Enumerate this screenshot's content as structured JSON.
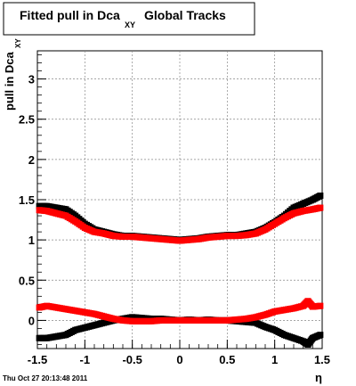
{
  "colors": {
    "series_black": "#000000",
    "series_red": "#ff0000",
    "grid": "#888888"
  },
  "chart_data": {
    "type": "scatter",
    "title_main": "Fitted pull in Dca",
    "title_sub": "XY",
    "title_tail": "Global Tracks",
    "xlabel": "η",
    "ylabel_main": "pull in Dca",
    "ylabel_sub": "XY",
    "xlim": [
      -1.5,
      1.5
    ],
    "ylim": [
      -0.35,
      3.35
    ],
    "grid": true,
    "x_ticks": [
      -1.5,
      -1,
      -0.5,
      0,
      0.5,
      1,
      1.5
    ],
    "x_tick_labels": [
      "-1.5",
      "-1",
      "-0.5",
      "0",
      "0.5",
      "1",
      "1.5"
    ],
    "y_ticks": [
      0,
      0.5,
      1,
      1.5,
      2,
      2.5,
      3
    ],
    "y_tick_labels": [
      "0",
      "0.5",
      "1",
      "1.5",
      "2",
      "2.5",
      "3"
    ],
    "timestamp": "Thu Oct 27 20:13:48 2011",
    "series": [
      {
        "color": "#000000",
        "x": [
          -1.48,
          -1.4,
          -1.3,
          -1.2,
          -1.1,
          -1.0,
          -0.9,
          -0.8,
          -0.7,
          -0.6,
          -0.5,
          -0.4,
          -0.3,
          -0.2,
          -0.1,
          0.0,
          0.1,
          0.2,
          0.3,
          0.4,
          0.5,
          0.6,
          0.7,
          0.8,
          0.9,
          1.0,
          1.1,
          1.2,
          1.3,
          1.4,
          1.48
        ],
        "y": [
          1.42,
          1.42,
          1.4,
          1.38,
          1.3,
          1.2,
          1.13,
          1.1,
          1.07,
          1.05,
          1.05,
          1.04,
          1.03,
          1.02,
          1.01,
          1.0,
          1.01,
          1.02,
          1.04,
          1.05,
          1.06,
          1.06,
          1.08,
          1.1,
          1.15,
          1.22,
          1.3,
          1.4,
          1.45,
          1.5,
          1.55
        ]
      },
      {
        "color": "#ff0000",
        "x": [
          -1.48,
          -1.4,
          -1.3,
          -1.2,
          -1.1,
          -1.0,
          -0.9,
          -0.8,
          -0.7,
          -0.6,
          -0.5,
          -0.4,
          -0.3,
          -0.2,
          -0.1,
          0.0,
          0.1,
          0.2,
          0.3,
          0.4,
          0.5,
          0.6,
          0.7,
          0.8,
          0.9,
          1.0,
          1.1,
          1.2,
          1.3,
          1.4,
          1.48
        ],
        "y": [
          1.37,
          1.36,
          1.33,
          1.3,
          1.23,
          1.15,
          1.1,
          1.08,
          1.05,
          1.04,
          1.04,
          1.03,
          1.02,
          1.01,
          1.0,
          0.99,
          1.0,
          1.01,
          1.03,
          1.04,
          1.05,
          1.05,
          1.06,
          1.08,
          1.13,
          1.2,
          1.27,
          1.33,
          1.36,
          1.38,
          1.4
        ]
      },
      {
        "color": "#000000",
        "x": [
          -1.48,
          -1.4,
          -1.3,
          -1.2,
          -1.1,
          -1.0,
          -0.9,
          -0.8,
          -0.7,
          -0.6,
          -0.5,
          -0.4,
          -0.3,
          -0.2,
          -0.1,
          0.0,
          0.1,
          0.2,
          0.3,
          0.4,
          0.5,
          0.6,
          0.7,
          0.8,
          0.9,
          1.0,
          1.1,
          1.2,
          1.3,
          1.35,
          1.4,
          1.48
        ],
        "y": [
          -0.22,
          -0.22,
          -0.2,
          -0.18,
          -0.12,
          -0.09,
          -0.06,
          -0.03,
          0.0,
          0.02,
          0.04,
          0.03,
          0.02,
          0.02,
          0.01,
          0.0,
          0.01,
          0.0,
          0.01,
          0.0,
          0.0,
          -0.01,
          -0.02,
          -0.03,
          -0.08,
          -0.12,
          -0.18,
          -0.22,
          -0.26,
          -0.3,
          -0.22,
          -0.18
        ]
      },
      {
        "color": "#ff0000",
        "x": [
          -1.48,
          -1.4,
          -1.3,
          -1.2,
          -1.1,
          -1.0,
          -0.9,
          -0.8,
          -0.7,
          -0.6,
          -0.5,
          -0.4,
          -0.3,
          -0.2,
          -0.1,
          0.0,
          0.1,
          0.2,
          0.3,
          0.4,
          0.5,
          0.6,
          0.7,
          0.8,
          0.9,
          1.0,
          1.1,
          1.2,
          1.3,
          1.35,
          1.4,
          1.48
        ],
        "y": [
          0.16,
          0.18,
          0.16,
          0.14,
          0.12,
          0.1,
          0.08,
          0.05,
          0.02,
          0.0,
          -0.01,
          -0.01,
          -0.01,
          0.0,
          0.0,
          0.0,
          0.0,
          0.0,
          0.0,
          0.0,
          0.0,
          0.01,
          0.02,
          0.04,
          0.07,
          0.11,
          0.13,
          0.15,
          0.18,
          0.24,
          0.17,
          0.18
        ]
      }
    ]
  }
}
